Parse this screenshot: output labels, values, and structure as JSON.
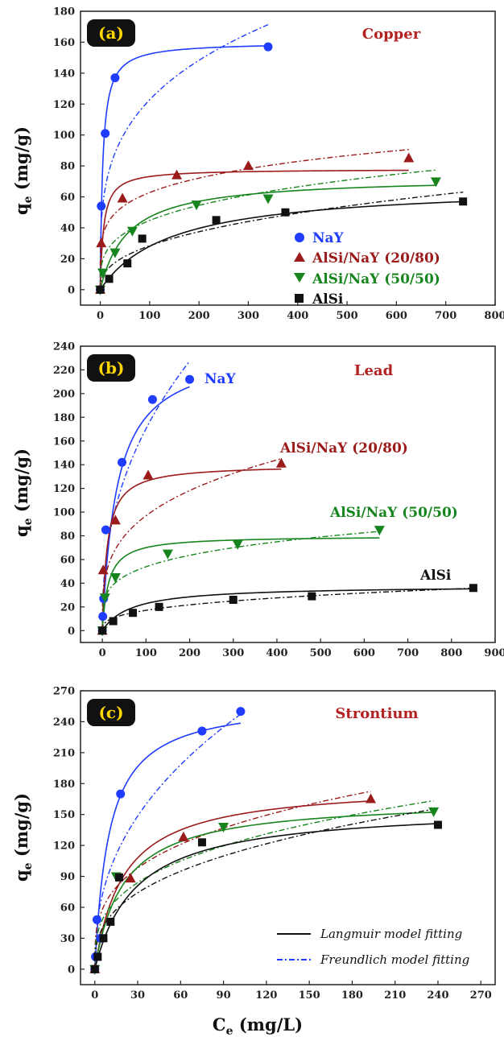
{
  "x_axis_title": {
    "main": "C",
    "sub": "e",
    "rest": " (mg/L)"
  },
  "y_axis_title": {
    "main": "q",
    "sub": "e",
    "rest": " (mg/g)"
  },
  "model_legend": {
    "langmuir": "Langmuir model fitting",
    "freundlich": "Freundlich model fitting"
  },
  "colors": {
    "NaY": "#1f3cff",
    "AlSi/NaY (20/80)": "#9b1b1b",
    "AlSi/NaY (50/50)": "#17851d",
    "AlSi": "#111111",
    "metal_label": "#b22222",
    "panel_tag_bg": "#111111",
    "panel_tag_text": "#ffd700"
  },
  "chart_data": [
    {
      "type": "scatter",
      "panel": "(a)",
      "metal": "Copper",
      "xlim": [
        -40,
        800
      ],
      "ylim": [
        -10,
        180
      ],
      "xticks": [
        0,
        100,
        200,
        300,
        400,
        500,
        600,
        700,
        800
      ],
      "yticks": [
        0,
        20,
        40,
        60,
        80,
        100,
        120,
        140,
        160,
        180
      ],
      "legend": {
        "position": "center-right",
        "entries": [
          "NaY",
          "AlSi/NaY (20/80)",
          "AlSi/NaY (50/50)",
          "AlSi"
        ]
      },
      "series": [
        {
          "name": "NaY",
          "marker": "circle",
          "x": [
            0,
            2,
            10,
            30,
            340
          ],
          "y": [
            0,
            54,
            101,
            137,
            157
          ],
          "langmuir": {
            "qmax": 160,
            "K": 0.2,
            "xmax": 340
          },
          "freundlich": {
            "Kf": 35,
            "n": 3.67,
            "xmax": 340
          }
        },
        {
          "name": "AlSi/NaY (20/80)",
          "marker": "triangle-up",
          "x": [
            0,
            2,
            45,
            155,
            300,
            625
          ],
          "y": [
            0,
            30,
            59,
            74,
            80,
            85
          ],
          "langmuir": {
            "qmax": 78,
            "K": 0.15,
            "xmax": 625
          },
          "freundlich": {
            "Kf": 25,
            "n": 5,
            "xmax": 625
          }
        },
        {
          "name": "AlSi/NaY (50/50)",
          "marker": "triangle-down",
          "x": [
            0,
            5,
            30,
            65,
            195,
            340,
            680
          ],
          "y": [
            0,
            11,
            24,
            38,
            55,
            59,
            70
          ],
          "langmuir": {
            "qmax": 73,
            "K": 0.018,
            "xmax": 680
          },
          "freundlich": {
            "Kf": 12,
            "n": 3.5,
            "xmax": 680
          }
        },
        {
          "name": "AlSi",
          "marker": "square",
          "x": [
            0,
            18,
            55,
            85,
            235,
            375,
            735
          ],
          "y": [
            0,
            7,
            17,
            33,
            45,
            50,
            57
          ],
          "langmuir": {
            "qmax": 68,
            "K": 0.007,
            "xmax": 735
          },
          "freundlich": {
            "Kf": 4.5,
            "n": 2.5,
            "xmax": 735
          }
        }
      ]
    },
    {
      "type": "scatter",
      "panel": "(b)",
      "metal": "Lead",
      "xlim": [
        -50,
        900
      ],
      "ylim": [
        -10,
        240
      ],
      "xticks": [
        0,
        100,
        200,
        300,
        400,
        500,
        600,
        700,
        800,
        900
      ],
      "yticks": [
        0,
        20,
        40,
        60,
        80,
        100,
        120,
        140,
        160,
        180,
        200,
        220,
        240
      ],
      "series": [
        {
          "name": "NaY",
          "marker": "circle",
          "x": [
            0,
            1,
            3,
            8,
            45,
            115,
            200
          ],
          "y": [
            0,
            12,
            27,
            85,
            142,
            195,
            212
          ],
          "langmuir": {
            "qmax": 240,
            "K": 0.03,
            "xmax": 200
          },
          "freundlich": {
            "Kf": 25,
            "n": 2.4,
            "xmax": 200
          }
        },
        {
          "name": "AlSi/NaY (20/80)",
          "marker": "triangle-up",
          "x": [
            0,
            2,
            30,
            105,
            410
          ],
          "y": [
            0,
            51,
            93,
            131,
            141
          ],
          "langmuir": {
            "qmax": 140,
            "K": 0.09,
            "xmax": 410
          },
          "freundlich": {
            "Kf": 26,
            "n": 3.5,
            "xmax": 410
          }
        },
        {
          "name": "AlSi/NaY (50/50)",
          "marker": "triangle-down",
          "x": [
            0,
            6,
            30,
            150,
            310,
            635
          ],
          "y": [
            0,
            28,
            45,
            65,
            73,
            85
          ],
          "langmuir": {
            "qmax": 80,
            "K": 0.07,
            "xmax": 635
          },
          "freundlich": {
            "Kf": 18,
            "n": 4.2,
            "xmax": 635
          }
        },
        {
          "name": "AlSi",
          "marker": "square",
          "x": [
            0,
            25,
            70,
            130,
            300,
            480,
            850
          ],
          "y": [
            0,
            8,
            15,
            20,
            26,
            29,
            36
          ],
          "langmuir": {
            "qmax": 38,
            "K": 0.015,
            "xmax": 850
          },
          "freundlich": {
            "Kf": 3.5,
            "n": 2.9,
            "xmax": 850
          }
        }
      ],
      "series_labels": [
        "NaY",
        "AlSi/NaY (20/80)",
        "AlSi/NaY (50/50)",
        "AlSi"
      ]
    },
    {
      "type": "scatter",
      "panel": "(c)",
      "metal": "Strontium",
      "xlim": [
        -10,
        280
      ],
      "ylim": [
        -15,
        270
      ],
      "xticks": [
        0,
        30,
        60,
        90,
        120,
        150,
        180,
        210,
        240,
        270
      ],
      "yticks": [
        0,
        30,
        60,
        90,
        120,
        150,
        180,
        210,
        240,
        270
      ],
      "series": [
        {
          "name": "NaY",
          "marker": "circle",
          "x": [
            0,
            0.5,
            1.5,
            4,
            18,
            75,
            102
          ],
          "y": [
            0,
            12,
            48,
            30,
            170,
            231,
            250
          ],
          "hidden_overlap": true,
          "langmuir": {
            "qmax": 262,
            "K": 0.1,
            "xmax": 102
          },
          "freundlich": {
            "Kf": 36,
            "n": 2.4,
            "xmax": 102
          }
        },
        {
          "name": "AlSi/NaY (20/80)",
          "marker": "triangle-up",
          "x": [
            0,
            25,
            62,
            193
          ],
          "y": [
            0,
            88,
            128,
            165
          ],
          "langmuir": {
            "qmax": 180,
            "K": 0.05,
            "xmax": 193
          },
          "freundlich": {
            "Kf": 35,
            "n": 3.3,
            "xmax": 193
          }
        },
        {
          "name": "AlSi/NaY (50/50)",
          "marker": "triangle-down",
          "x": [
            0,
            15,
            90,
            237
          ],
          "y": [
            0,
            90,
            138,
            153
          ],
          "langmuir": {
            "qmax": 165,
            "K": 0.05,
            "xmax": 237
          },
          "freundlich": {
            "Kf": 28,
            "n": 3.1,
            "xmax": 237
          }
        },
        {
          "name": "AlSi",
          "marker": "square",
          "x": [
            0,
            2,
            6,
            11,
            17,
            75,
            240
          ],
          "y": [
            0,
            12,
            30,
            46,
            89,
            123,
            140
          ],
          "langmuir": {
            "qmax": 158,
            "K": 0.035,
            "xmax": 240
          },
          "freundlich": {
            "Kf": 22,
            "n": 2.8,
            "xmax": 240
          }
        }
      ]
    }
  ]
}
